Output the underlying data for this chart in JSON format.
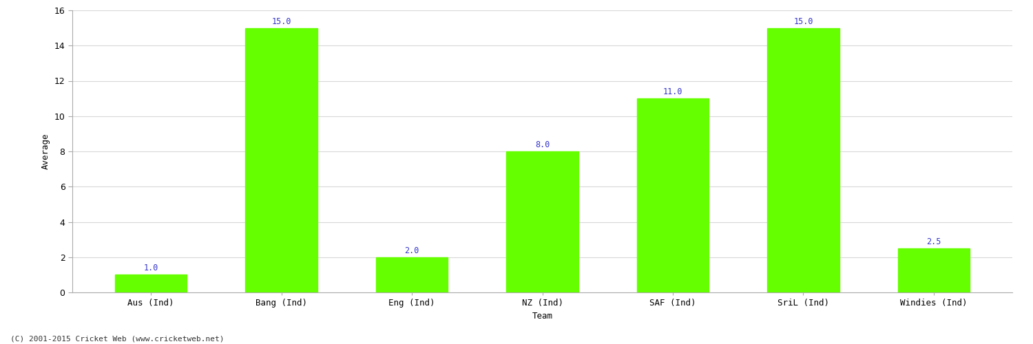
{
  "categories": [
    "Aus (Ind)",
    "Bang (Ind)",
    "Eng (Ind)",
    "NZ (Ind)",
    "SAF (Ind)",
    "SriL (Ind)",
    "Windies (Ind)"
  ],
  "values": [
    1.0,
    15.0,
    2.0,
    8.0,
    11.0,
    15.0,
    2.5
  ],
  "bar_color": "#66ff00",
  "label_color": "#3333cc",
  "xlabel": "Team",
  "ylabel": "Average",
  "ylim": [
    0,
    16
  ],
  "yticks": [
    0,
    2,
    4,
    6,
    8,
    10,
    12,
    14,
    16
  ],
  "background_color": "#ffffff",
  "grid_color": "#d8d8d8",
  "label_fontsize": 8.5,
  "axis_label_fontsize": 9,
  "tick_fontsize": 9,
  "footer_text": "(C) 2001-2015 Cricket Web (www.cricketweb.net)",
  "footer_fontsize": 8,
  "bar_width": 0.55
}
